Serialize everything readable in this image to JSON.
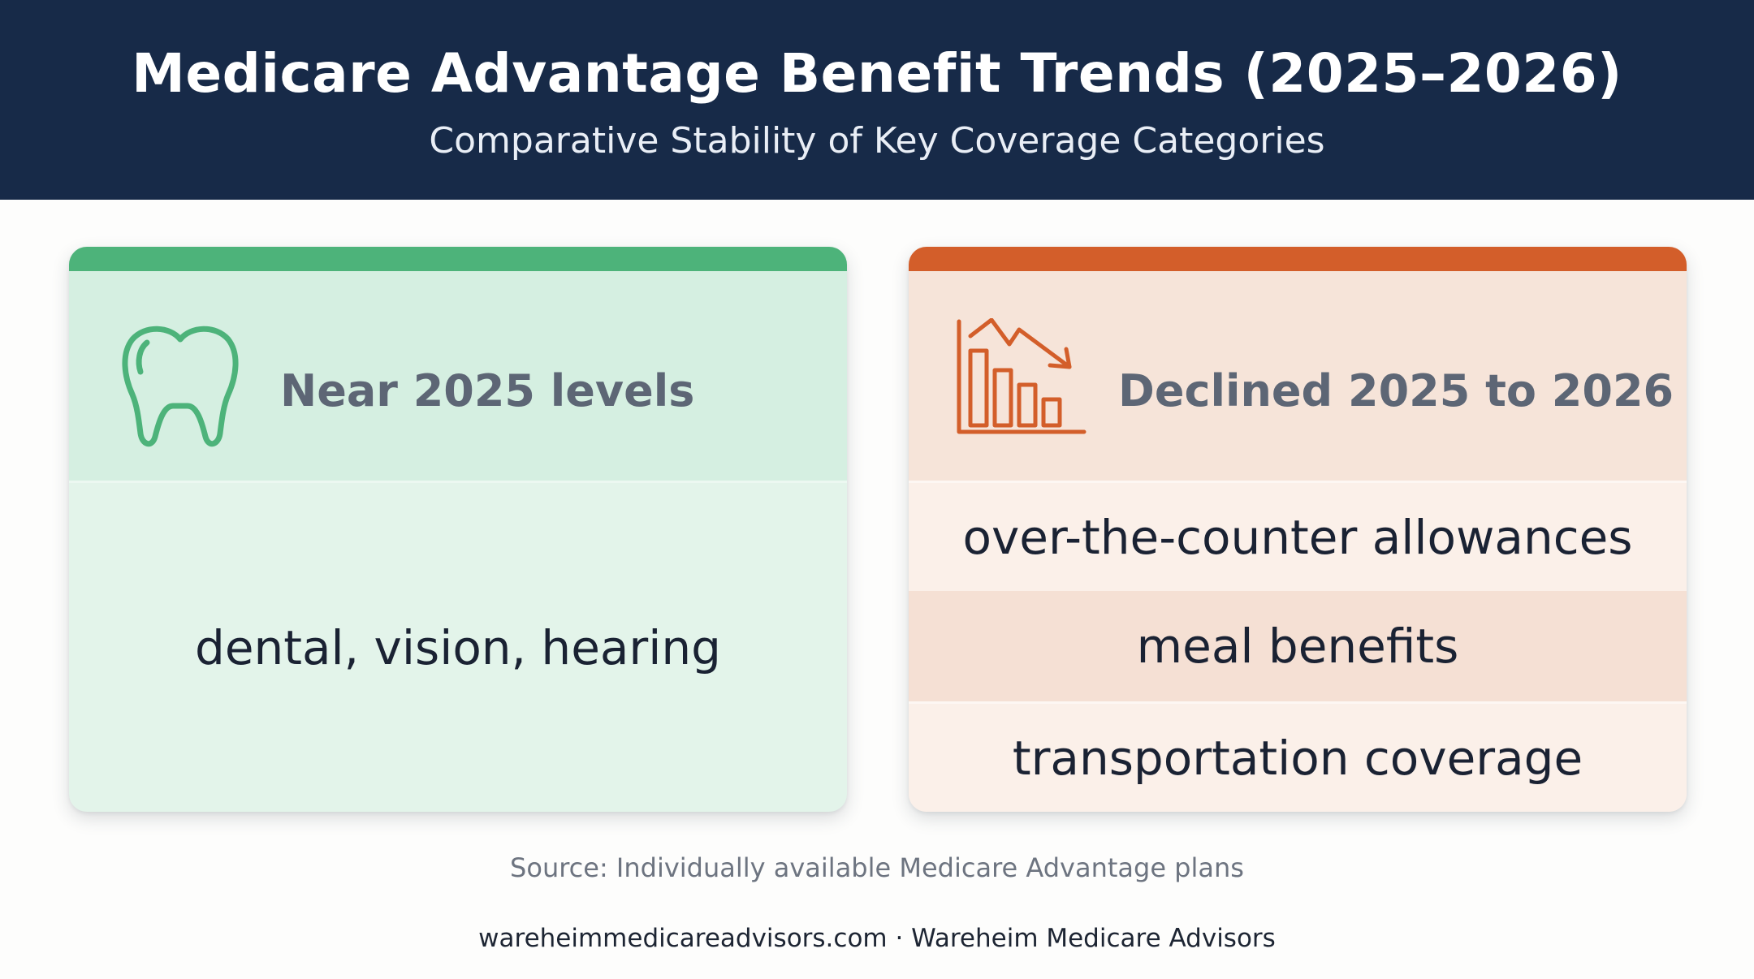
{
  "header": {
    "title": "Medicare Advantage Benefit Trends (2025–2026)",
    "subtitle": "Comparative Stability of Key Coverage Categories"
  },
  "stable_card": {
    "heading": "Near 2025 levels",
    "icon": "tooth-icon",
    "accent_color": "#4db37a",
    "items": [
      "dental, vision, hearing"
    ]
  },
  "declined_card": {
    "heading": "Declined 2025 to 2026",
    "icon": "declining-bar-chart-icon",
    "accent_color": "#d35e2a",
    "items": [
      "over-the-counter allowances",
      "meal benefits",
      "transportation coverage"
    ]
  },
  "source": "Source: Individually available Medicare Advantage plans",
  "footer": "wareheimmedicareadvisors.com · Wareheim Medicare Advisors"
}
